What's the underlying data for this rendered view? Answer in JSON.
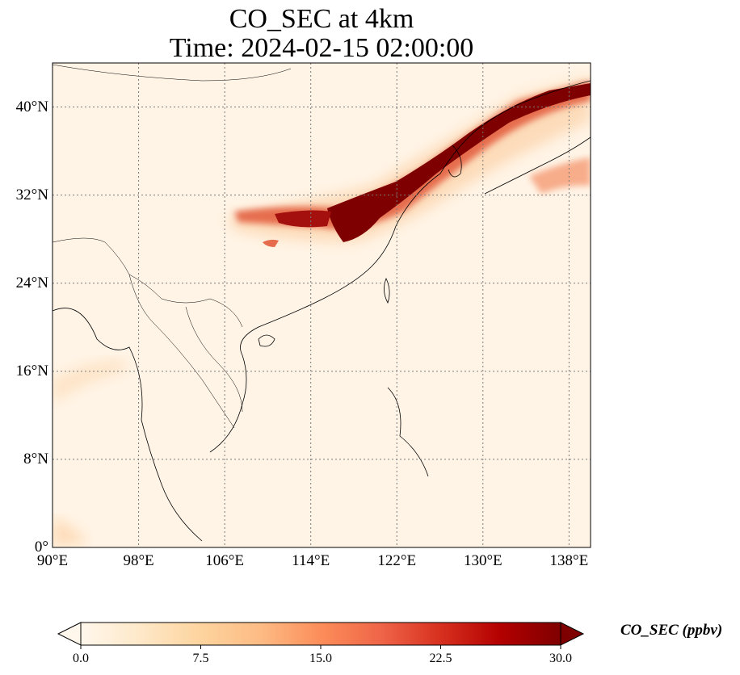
{
  "title_line1": "CO_SEC at 4km",
  "title_line2": "Time: 2024-02-15 02:00:00",
  "map": {
    "region": "East Asia",
    "lon_range": [
      90,
      140
    ],
    "lat_range": [
      0,
      44
    ],
    "gridlines": true,
    "colormap": "OrRd",
    "lon_ticks": [
      {
        "value": 90,
        "label": "90°E"
      },
      {
        "value": 98,
        "label": "98°E"
      },
      {
        "value": 106,
        "label": "106°E"
      },
      {
        "value": 114,
        "label": "114°E"
      },
      {
        "value": 122,
        "label": "122°E"
      },
      {
        "value": 130,
        "label": "130°E"
      },
      {
        "value": 138,
        "label": "138°E"
      }
    ],
    "lat_ticks": [
      {
        "value": 0,
        "label": "0°"
      },
      {
        "value": 8,
        "label": "8°N"
      },
      {
        "value": 16,
        "label": "16°N"
      },
      {
        "value": 24,
        "label": "24°N"
      },
      {
        "value": 32,
        "label": "32°N"
      },
      {
        "value": 40,
        "label": "40°N"
      }
    ]
  },
  "colorbar": {
    "label": "CO_SEC (ppbv)",
    "min": 0.0,
    "max": 30.0,
    "extend": "both",
    "tick_labels": [
      "0.0",
      "7.5",
      "15.0",
      "22.5",
      "30.0"
    ],
    "tick_values": [
      0.0,
      7.5,
      15.0,
      22.5,
      30.0
    ],
    "colors": [
      "#fff7ec",
      "#fee8c8",
      "#fdd49e",
      "#fdbb84",
      "#fc8d59",
      "#ef6548",
      "#d7301f",
      "#b30000",
      "#7f0000"
    ]
  }
}
